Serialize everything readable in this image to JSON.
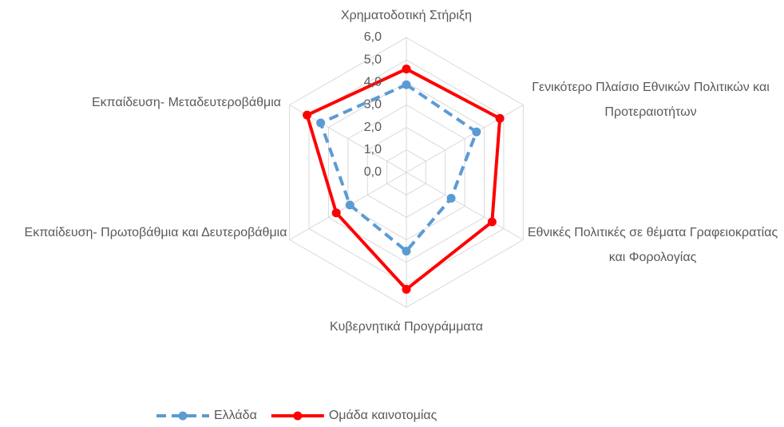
{
  "chart_data": {
    "type": "radar",
    "categories": [
      "Χρηματοδοτική Στήριξη",
      "Γενικότερο Πλαίσιο Εθνικών Πολιτικών και Προτεραιοτήτων",
      "Εθνικές Πολιτικές σε θέματα Γραφειοκρατίας και Φορολογίας",
      "Κυβερνητικά Προγράμματα",
      "Εκπαίδευση- Πρωτοβάθμια και Δευτεροβάθμια",
      "Εκπαίδευση- Μεταδευτεροβάθμια"
    ],
    "series": [
      {
        "name": "Ελλάδα",
        "color": "#5b9bd5",
        "dashed": true,
        "values": [
          3.9,
          3.6,
          2.3,
          3.5,
          2.9,
          4.4
        ]
      },
      {
        "name": "Ομάδα καινοτομίας",
        "color": "#ff0000",
        "dashed": false,
        "values": [
          4.6,
          4.8,
          4.4,
          5.2,
          3.6,
          5.1
        ]
      }
    ],
    "ylim": [
      0,
      6
    ],
    "yticks": [
      {
        "value": 0,
        "label": "0,0"
      },
      {
        "value": 1,
        "label": "1,0"
      },
      {
        "value": 2,
        "label": "2,0"
      },
      {
        "value": 3,
        "label": "3,0"
      },
      {
        "value": 4,
        "label": "4,0"
      },
      {
        "value": 5,
        "label": "5,0"
      },
      {
        "value": 6,
        "label": "6,0"
      }
    ],
    "grid": true,
    "legend": "bottom"
  }
}
